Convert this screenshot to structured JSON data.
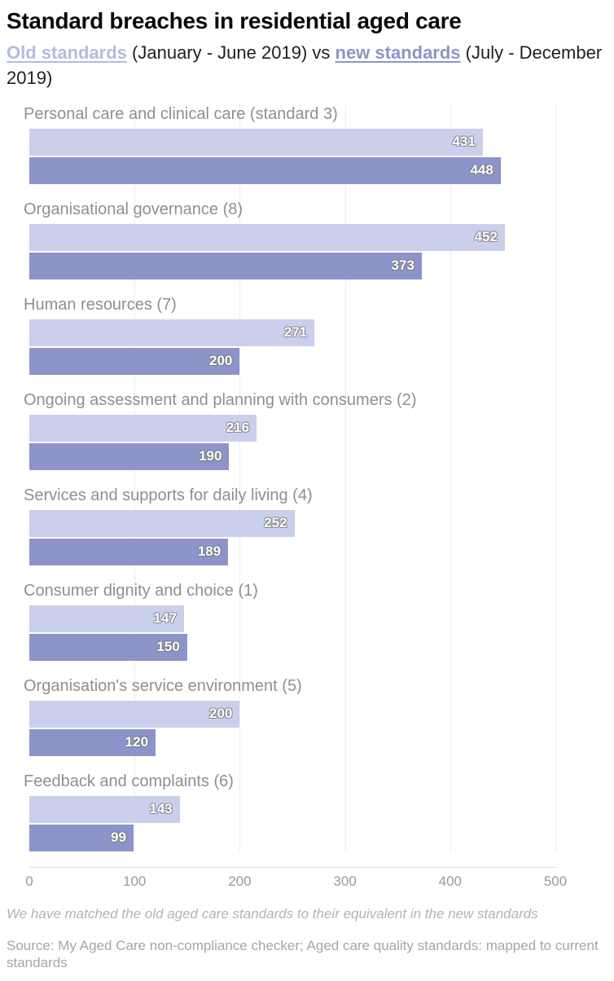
{
  "title": "Standard breaches in residential aged care",
  "subtitle": {
    "old_label": "Old standards",
    "middle": " (January - June 2019) vs ",
    "new_label": "new standards",
    "tail": " (July - December 2019)"
  },
  "chart_data": {
    "type": "bar",
    "orientation": "horizontal",
    "title": "Standard breaches in residential aged care",
    "categories": [
      "Personal care and clinical care (standard 3)",
      "Organisational governance (8)",
      "Human resources (7)",
      "Ongoing assessment and planning with consumers (2)",
      "Services and supports for daily living (4)",
      "Consumer dignity and choice (1)",
      "Organisation's service environment (5)",
      "Feedback and complaints (6)"
    ],
    "series": [
      {
        "name": "Old standards (January - June 2019)",
        "color": "#cacfeb",
        "values": [
          431,
          452,
          271,
          216,
          252,
          147,
          200,
          143
        ]
      },
      {
        "name": "New standards (July - December 2019)",
        "color": "#8c94c9",
        "values": [
          448,
          373,
          200,
          190,
          189,
          150,
          120,
          99
        ]
      }
    ],
    "xlim": [
      0,
      500
    ],
    "xticks": [
      0,
      100,
      200,
      300,
      400,
      500
    ],
    "grid": "vertical-light",
    "legend_position": "in-subtitle",
    "xlabel": "",
    "ylabel": ""
  },
  "footnote": "We have matched the old aged care standards to their equivalent in the new standards",
  "source": "Source: My Aged Care non-compliance checker; Aged care quality standards: mapped to current standards",
  "colors": {
    "old_bar": "#cacfeb",
    "new_bar": "#8c94c9",
    "legend_old_text": "#b4bbe0",
    "legend_new_text": "#8c94c9",
    "category_label": "#8f8f8f",
    "tick_label": "#999999",
    "footnote_text": "#b3b3b3",
    "source_text": "#a6a6a6",
    "value_label_text": "#ffffff"
  }
}
